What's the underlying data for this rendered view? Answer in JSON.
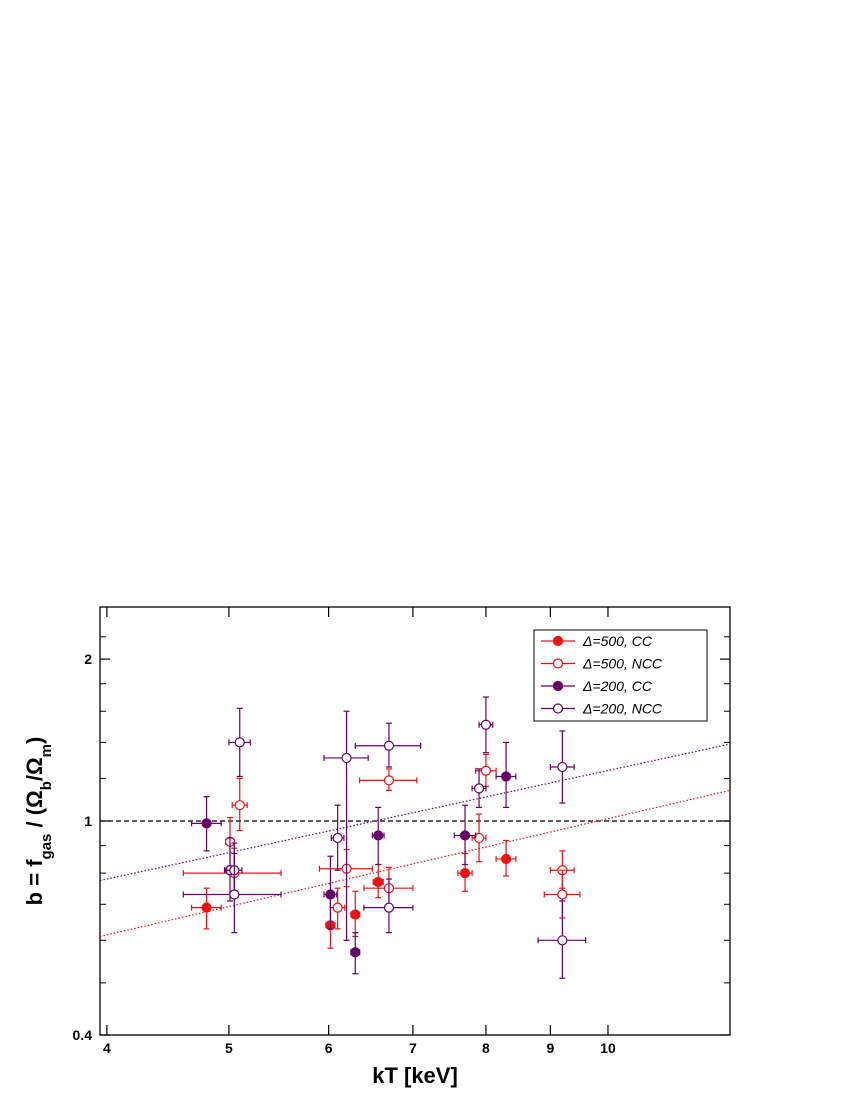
{
  "chart_data": {
    "type": "scatter",
    "title": "",
    "xlabel": "kT [keV]",
    "ylabel": {
      "main": "b = f",
      "sub1": "gas",
      "mid1": " / (Ω",
      "sub2": "b",
      "mid2": "/Ω",
      "sub3": "m",
      "end": ")"
    },
    "x_scale": "log",
    "y_scale": "log",
    "xlim": [
      3.95,
      12.5
    ],
    "ylim": [
      0.4,
      2.5
    ],
    "x_ticks": [
      4,
      5,
      6,
      7,
      8,
      9,
      10
    ],
    "y_ticks_labeled": [
      0.4,
      1,
      2
    ],
    "y_ticks_minor": [
      0.5,
      0.6,
      0.7,
      0.8,
      0.9,
      1.2,
      1.4,
      1.6,
      1.8,
      2.2
    ],
    "grid": false,
    "legend_position": "top-right",
    "colors": {
      "red": "#ee1111",
      "purple": "#660066",
      "dashed": "#000000"
    },
    "reference_line": {
      "y": 1.0,
      "style": "dashed"
    },
    "fit_lines": [
      {
        "series": "Δ=500",
        "color": "#ee1111",
        "x": [
          3.95,
          12.5
        ],
        "y": [
          0.61,
          1.14
        ]
      },
      {
        "series": "Δ=200",
        "color": "#660066",
        "x": [
          3.95,
          12.5
        ],
        "y": [
          0.775,
          1.39
        ]
      }
    ],
    "series": [
      {
        "name": "Δ=500, CC",
        "color": "#ee1111",
        "filled": true,
        "points": [
          {
            "x": 4.8,
            "y": 0.69,
            "xerr": 0.13,
            "yerr_up": 0.06,
            "yerr_down": 0.06
          },
          {
            "x": 6.02,
            "y": 0.64,
            "xerr": 0.05,
            "yerr_up": 0.08,
            "yerr_down": 0.06
          },
          {
            "x": 6.3,
            "y": 0.67,
            "xerr": 0.05,
            "yerr_up": 0.07,
            "yerr_down": 0.06
          },
          {
            "x": 6.57,
            "y": 0.77,
            "xerr": 0.06,
            "yerr_up": 0.06,
            "yerr_down": 0.05
          },
          {
            "x": 7.7,
            "y": 0.8,
            "xerr": 0.1,
            "yerr_up": 0.07,
            "yerr_down": 0.06
          },
          {
            "x": 8.3,
            "y": 0.85,
            "xerr": 0.15,
            "yerr_up": 0.07,
            "yerr_down": 0.06
          }
        ]
      },
      {
        "name": "Δ=500, NCC",
        "color": "#ee1111",
        "filled": false,
        "points": [
          {
            "x": 5.01,
            "y": 0.915,
            "xerr": 0.04,
            "yerr_up": 0.1,
            "yerr_down": 0.09
          },
          {
            "x": 5.1,
            "y": 1.07,
            "xerr": 0.07,
            "yerr_up": 0.13,
            "yerr_down": 0.11
          },
          {
            "x": 5.05,
            "y": 0.8,
            "xerr": 0.45,
            "yerr_up": 0.09,
            "yerr_down": 0.07
          },
          {
            "x": 6.1,
            "y": 0.69,
            "xerr": 0.08,
            "yerr_up": 0.06,
            "yerr_down": 0.06
          },
          {
            "x": 6.2,
            "y": 0.815,
            "xerr": 0.3,
            "yerr_up": 0.07,
            "yerr_down": 0.06
          },
          {
            "x": 6.7,
            "y": 1.19,
            "xerr": 0.35,
            "yerr_up": 0.06,
            "yerr_down": 0.05
          },
          {
            "x": 6.7,
            "y": 0.75,
            "xerr": 0.3,
            "yerr_up": 0.07,
            "yerr_down": 0.07
          },
          {
            "x": 7.9,
            "y": 0.93,
            "xerr": 0.1,
            "yerr_up": 0.1,
            "yerr_down": 0.09
          },
          {
            "x": 8.0,
            "y": 1.24,
            "xerr": 0.15,
            "yerr_up": 0.09,
            "yerr_down": 0.08
          },
          {
            "x": 9.2,
            "y": 0.81,
            "xerr": 0.2,
            "yerr_up": 0.07,
            "yerr_down": 0.06
          },
          {
            "x": 9.2,
            "y": 0.73,
            "xerr": 0.3,
            "yerr_up": 0.08,
            "yerr_down": 0.07
          }
        ]
      },
      {
        "name": "Δ=200, CC",
        "color": "#660066",
        "filled": true,
        "points": [
          {
            "x": 4.8,
            "y": 0.99,
            "xerr": 0.13,
            "yerr_up": 0.12,
            "yerr_down": 0.11
          },
          {
            "x": 6.02,
            "y": 0.73,
            "xerr": 0.07,
            "yerr_up": 0.13,
            "yerr_down": 0.1
          },
          {
            "x": 6.3,
            "y": 0.57,
            "xerr": 0.05,
            "yerr_up": 0.05,
            "yerr_down": 0.05
          },
          {
            "x": 6.57,
            "y": 0.94,
            "xerr": 0.07,
            "yerr_up": 0.12,
            "yerr_down": 0.11
          },
          {
            "x": 7.7,
            "y": 0.94,
            "xerr": 0.15,
            "yerr_up": 0.13,
            "yerr_down": 0.11
          },
          {
            "x": 8.3,
            "y": 1.21,
            "xerr": 0.15,
            "yerr_up": 0.19,
            "yerr_down": 0.15
          }
        ]
      },
      {
        "name": "Δ=200, NCC",
        "color": "#660066",
        "filled": false,
        "points": [
          {
            "x": 5.01,
            "y": 0.81,
            "xerr": 0.05,
            "yerr_up": 0.12,
            "yerr_down": 0.1
          },
          {
            "x": 5.05,
            "y": 0.81,
            "xerr": 0.07,
            "yerr_up": 0.1,
            "yerr_down": 0.08
          },
          {
            "x": 5.05,
            "y": 0.73,
            "xerr": 0.45,
            "yerr_up": 0.14,
            "yerr_down": 0.11
          },
          {
            "x": 5.1,
            "y": 1.4,
            "xerr": 0.1,
            "yerr_up": 0.22,
            "yerr_down": 0.19
          },
          {
            "x": 6.1,
            "y": 0.93,
            "xerr": 0.07,
            "yerr_up": 0.14,
            "yerr_down": 0.12
          },
          {
            "x": 6.2,
            "y": 1.31,
            "xerr": 0.25,
            "yerr_up": 0.29,
            "yerr_down": 0.71
          },
          {
            "x": 6.7,
            "y": 1.38,
            "xerr": 0.4,
            "yerr_up": 0.14,
            "yerr_down": 0.12
          },
          {
            "x": 6.7,
            "y": 0.69,
            "xerr": 0.3,
            "yerr_up": 0.09,
            "yerr_down": 0.07
          },
          {
            "x": 7.9,
            "y": 1.15,
            "xerr": 0.1,
            "yerr_up": 0.1,
            "yerr_down": 0.09
          },
          {
            "x": 8.0,
            "y": 1.51,
            "xerr": 0.1,
            "yerr_up": 0.19,
            "yerr_down": 0.17
          },
          {
            "x": 9.2,
            "y": 1.26,
            "xerr": 0.2,
            "yerr_up": 0.21,
            "yerr_down": 0.18
          },
          {
            "x": 9.2,
            "y": 0.6,
            "xerr": 0.4,
            "yerr_up": 0.11,
            "yerr_down": 0.09
          }
        ]
      }
    ]
  }
}
